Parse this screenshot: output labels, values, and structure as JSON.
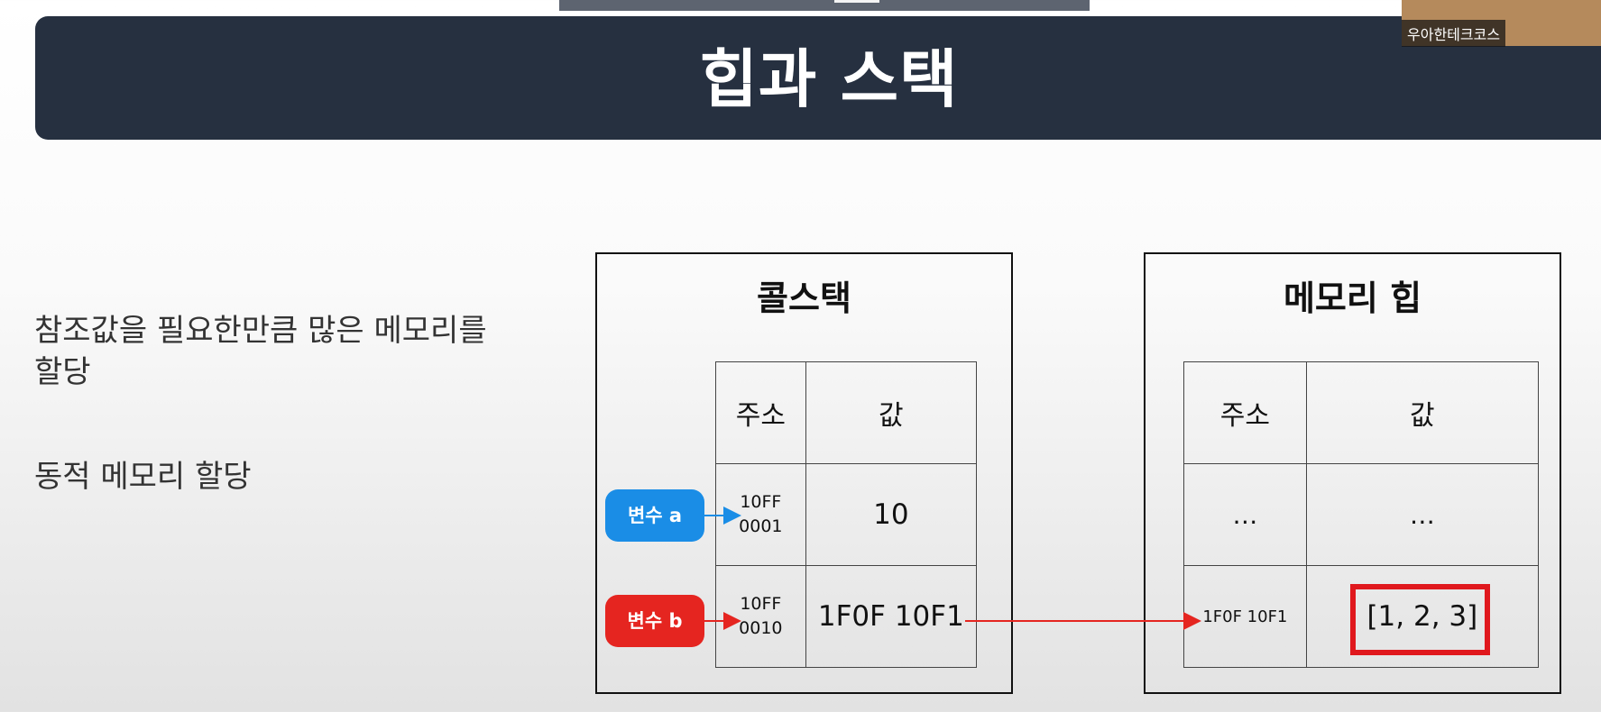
{
  "slide": {
    "title": "힙과 스택",
    "presenter_label": "우아한테크코스",
    "paragraphs": [
      "참조값을 필요한만큼 많은 메모리를 할당",
      "동적 메모리 할당"
    ]
  },
  "call_stack": {
    "title": "콜스택",
    "columns": [
      "주소",
      "값"
    ],
    "rows": [
      {
        "address": "10FF\n0001",
        "value": "10"
      },
      {
        "address": "10FF\n0010",
        "value": "1F0F 10F1"
      }
    ]
  },
  "variables": [
    {
      "label": "변수 a",
      "color": "#1a8de6"
    },
    {
      "label": "변수 b",
      "color": "#e52520"
    }
  ],
  "memory_heap": {
    "title": "메모리 힙",
    "columns": [
      "주소",
      "값"
    ],
    "rows": [
      {
        "address": "…",
        "value": "…"
      },
      {
        "address": "1F0F 10F1",
        "value": "[1, 2, 3]"
      }
    ]
  },
  "colors": {
    "banner": "#263040",
    "highlight": "#e0181d"
  }
}
